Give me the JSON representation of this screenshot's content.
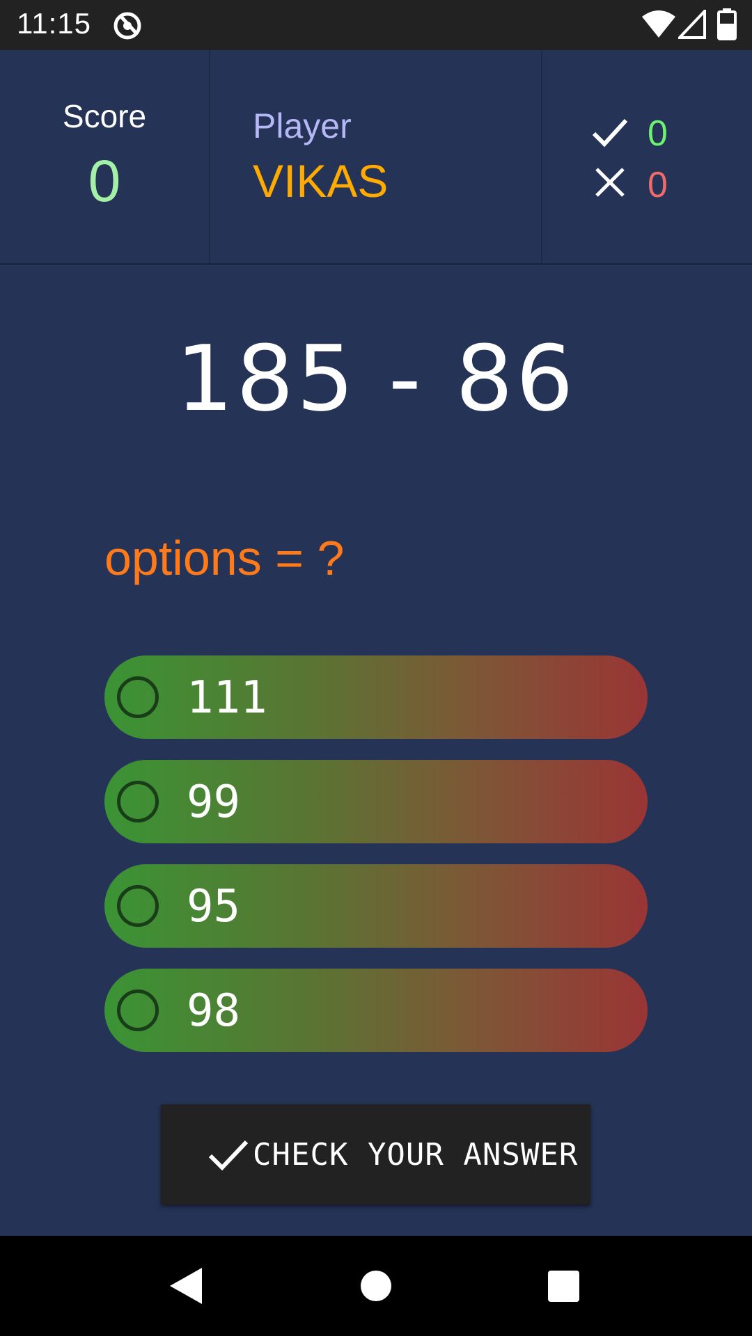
{
  "status_bar": {
    "time": "11:15",
    "icons": [
      "app-notification-icon",
      "wifi-icon",
      "signal-icon",
      "battery-icon"
    ]
  },
  "header": {
    "score_label": "Score",
    "score_value": "0",
    "player_label": "Player",
    "player_name": "VIKAS",
    "correct_count": "0",
    "wrong_count": "0",
    "icons": [
      "checkmark-icon",
      "cross-icon"
    ]
  },
  "question": {
    "expression": "185 - 86",
    "options_label": "options = ?"
  },
  "options": [
    {
      "value": "111"
    },
    {
      "value": "99"
    },
    {
      "value": "95"
    },
    {
      "value": "98"
    }
  ],
  "check_button": {
    "label": "CHECK YOUR ANSWER",
    "icon": "checkmark-icon"
  },
  "nav_bar": {
    "icons": [
      "back-icon",
      "home-icon",
      "recents-icon"
    ]
  },
  "colors": {
    "background": "#253357",
    "score_value": "#a3f0a6",
    "player_label": "#b5b8f5",
    "player_name": "#ffab00",
    "correct": "#6cf26e",
    "wrong": "#f06a6a",
    "options_label": "#ff7a1a",
    "option_gradient_start": "#3a9434",
    "option_gradient_end": "#9a3535",
    "button_bg": "#222222"
  }
}
